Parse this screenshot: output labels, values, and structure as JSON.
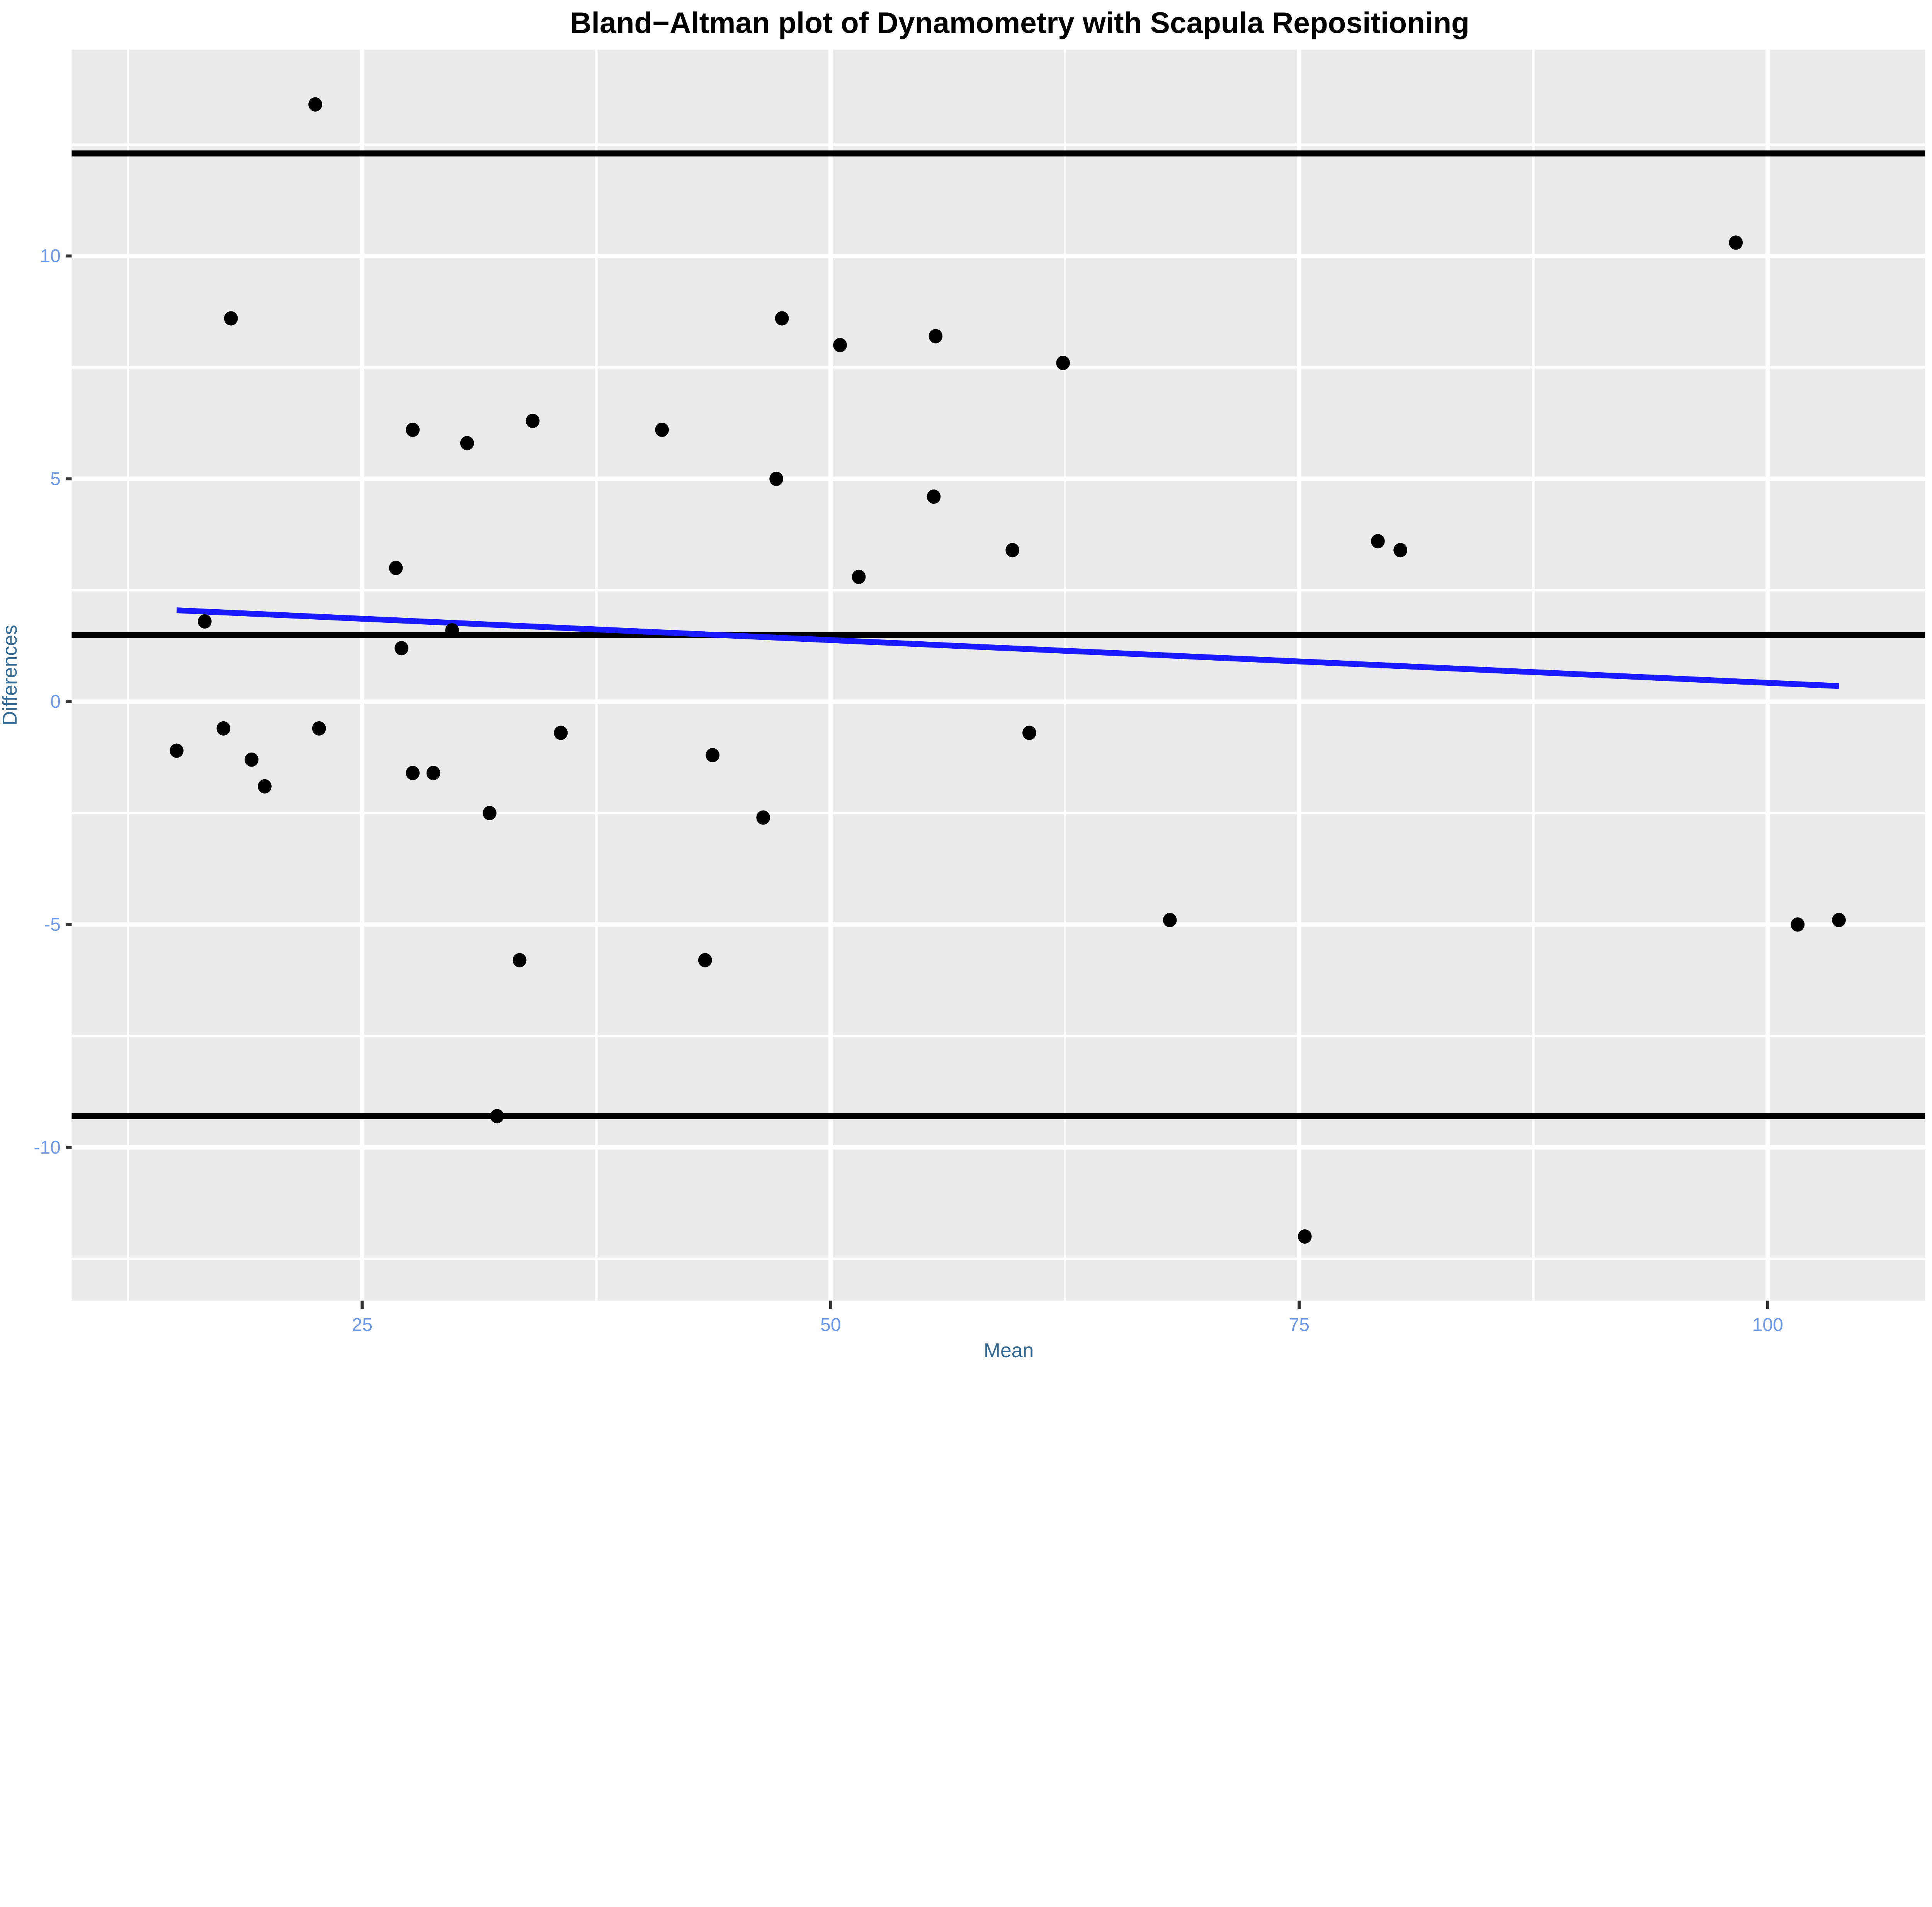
{
  "chart_data": {
    "type": "scatter",
    "title": "Bland−Altman plot of Dynamometry with Scapula Repositioning",
    "xlabel": "Mean",
    "ylabel": "Differences",
    "xlim": [
      9.5,
      108.4
    ],
    "ylim": [
      -13.44,
      14.63
    ],
    "x_major_ticks": [
      25,
      50,
      75,
      100
    ],
    "x_minor_gridlines": [
      12.5,
      37.5,
      62.5,
      87.5
    ],
    "y_major_ticks": [
      -10,
      -5,
      0,
      5,
      10
    ],
    "y_minor_gridlines": [
      -12.5,
      -7.5,
      -2.5,
      2.5,
      7.5,
      12.5
    ],
    "grid": "major-and-minor-white-on-grey",
    "legend": "none",
    "layout": {
      "l": 52,
      "t": 36,
      "r": 1397,
      "b": 944
    },
    "points": [
      [
        22.5,
        13.4
      ],
      [
        98.3,
        10.3
      ],
      [
        18.0,
        8.6
      ],
      [
        47.4,
        8.6
      ],
      [
        55.6,
        8.2
      ],
      [
        50.5,
        8.0
      ],
      [
        62.4,
        7.6
      ],
      [
        34.1,
        6.3
      ],
      [
        27.7,
        6.1
      ],
      [
        41.0,
        6.1
      ],
      [
        30.6,
        5.8
      ],
      [
        47.1,
        5.0
      ],
      [
        55.5,
        4.6
      ],
      [
        79.2,
        3.6
      ],
      [
        59.7,
        3.4
      ],
      [
        80.4,
        3.4
      ],
      [
        26.8,
        3.0
      ],
      [
        51.5,
        2.8
      ],
      [
        16.6,
        1.8
      ],
      [
        29.8,
        1.6
      ],
      [
        27.1,
        1.2
      ],
      [
        17.6,
        -0.6
      ],
      [
        22.7,
        -0.6
      ],
      [
        35.6,
        -0.7
      ],
      [
        60.6,
        -0.7
      ],
      [
        15.1,
        -1.1
      ],
      [
        43.7,
        -1.2
      ],
      [
        19.1,
        -1.3
      ],
      [
        27.7,
        -1.6
      ],
      [
        28.8,
        -1.6
      ],
      [
        19.8,
        -1.9
      ],
      [
        31.8,
        -2.5
      ],
      [
        46.4,
        -2.6
      ],
      [
        68.1,
        -4.9
      ],
      [
        103.8,
        -4.9
      ],
      [
        101.6,
        -5.0
      ],
      [
        43.3,
        -5.8
      ],
      [
        33.4,
        -5.8
      ],
      [
        32.2,
        -9.3
      ],
      [
        75.3,
        -12.0
      ]
    ],
    "reference_lines": {
      "upper_loa": 12.3,
      "mean": 1.5,
      "lower_loa": -9.3
    },
    "regression_line": {
      "x1": 15.1,
      "y1": 2.05,
      "x2": 103.8,
      "y2": 0.35
    }
  },
  "colors": {
    "panel_bg": "#EBEBEB",
    "grid": "#FFFFFF",
    "point": "#000000",
    "reference_line": "#000000",
    "regression": "#1A1AFF",
    "tick_label": "#6B97E8",
    "tick_mark": "#333333",
    "axis_title": "#336A96",
    "title": "#000000"
  }
}
